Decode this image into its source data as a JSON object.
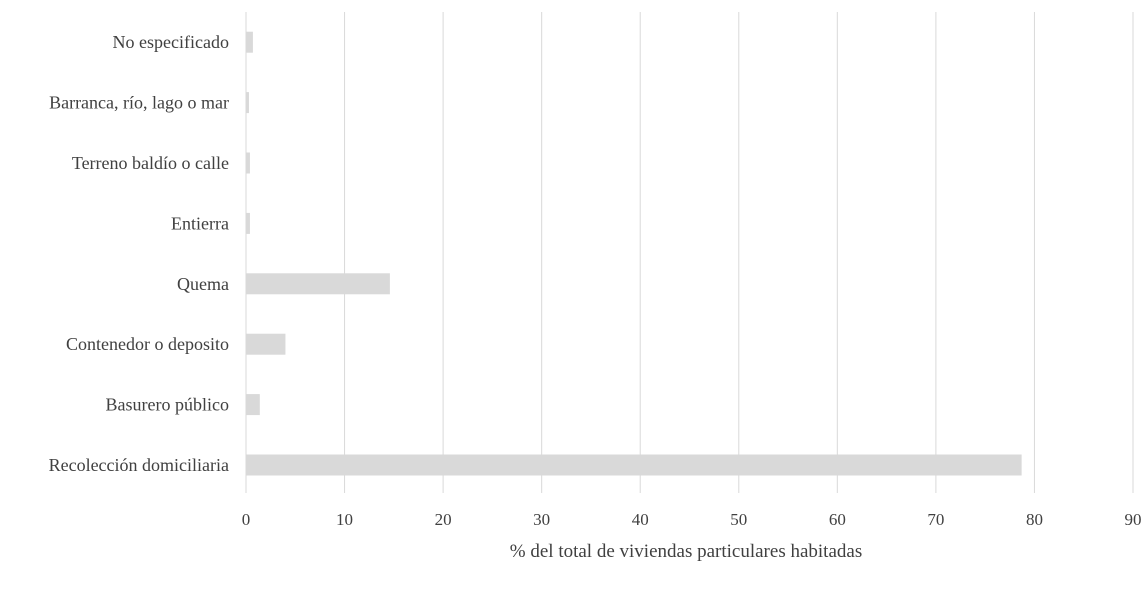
{
  "chart_data": {
    "type": "bar",
    "orientation": "horizontal",
    "title": "",
    "xlabel": "% del total de viviendas particulares habitadas",
    "ylabel": "",
    "xlim": [
      0,
      90
    ],
    "x_ticks": [
      "0",
      "10",
      "20",
      "30",
      "40",
      "50",
      "60",
      "70",
      "80",
      "90"
    ],
    "grid": true,
    "categories": [
      "No especificado",
      "Barranca, río, lago o mar",
      "Terreno baldío o calle",
      "Entierra",
      "Quema",
      "Contenedor o deposito",
      "Basurero público",
      "Recolección domiciliaria"
    ],
    "values": [
      0.7,
      0.3,
      0.4,
      0.4,
      14.6,
      4.0,
      1.4,
      78.7
    ],
    "colors": {
      "bar": "#d9d9d9",
      "grid": "#d9d9d9",
      "text": "#404040"
    }
  }
}
